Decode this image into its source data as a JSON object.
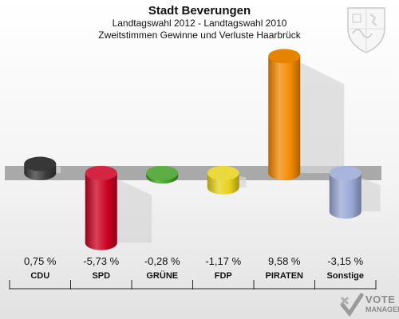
{
  "header": {
    "title": "Stadt Beverungen",
    "subtitle1": "Landtagswahl 2012 - Landtagswahl 2010",
    "subtitle2": "Zweitstimmen Gewinne und Verluste Haarbrück"
  },
  "logo": {
    "line1": "VOTE",
    "line2": "MANAGER"
  },
  "chart_data": {
    "type": "bar",
    "categories": [
      "CDU",
      "SPD",
      "GRÜNE",
      "FDP",
      "PIRATEN",
      "Sonstige"
    ],
    "values": [
      0.75,
      -5.73,
      -0.28,
      -1.17,
      9.58,
      -3.15
    ],
    "value_labels": [
      "0,75 %",
      "-5,73 %",
      "-0,28 %",
      "-1,17 %",
      "9,58 %",
      "-3,15 %"
    ],
    "colors": [
      "#3a3a3a",
      "#cc0022",
      "#3fa021",
      "#e6d21a",
      "#f28a00",
      "#9aa8d4"
    ],
    "unit": "%",
    "grid": false
  }
}
